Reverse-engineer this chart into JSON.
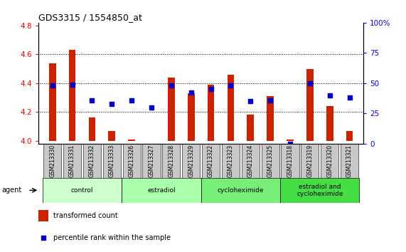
{
  "title": "GDS3315 / 1554850_at",
  "samples": [
    "GSM213330",
    "GSM213331",
    "GSM213332",
    "GSM213333",
    "GSM213326",
    "GSM213327",
    "GSM213328",
    "GSM213329",
    "GSM213322",
    "GSM213323",
    "GSM213324",
    "GSM213325",
    "GSM213318",
    "GSM213319",
    "GSM213320",
    "GSM213321"
  ],
  "transformed_counts": [
    4.54,
    4.63,
    4.16,
    4.07,
    4.01,
    4.0,
    4.44,
    4.33,
    4.39,
    4.46,
    4.18,
    4.31,
    4.01,
    4.5,
    4.24,
    4.07
  ],
  "percentile_ranks": [
    48,
    49,
    36,
    33,
    36,
    30,
    48,
    42,
    45,
    48,
    35,
    36,
    0,
    50,
    40,
    38
  ],
  "group_boundaries": [
    {
      "start": 0,
      "end": 3,
      "label": "control",
      "color": "#ccffcc"
    },
    {
      "start": 4,
      "end": 7,
      "label": "estradiol",
      "color": "#aaffaa"
    },
    {
      "start": 8,
      "end": 11,
      "label": "cycloheximide",
      "color": "#77ee77"
    },
    {
      "start": 12,
      "end": 15,
      "label": "estradiol and\ncycloheximide",
      "color": "#44dd44"
    }
  ],
  "bar_color": "#cc2200",
  "dot_color": "#0000cc",
  "ylim_left": [
    3.98,
    4.82
  ],
  "ylim_right": [
    0,
    100
  ],
  "yticks_left": [
    4.0,
    4.2,
    4.4,
    4.6,
    4.8
  ],
  "yticks_right": [
    0,
    25,
    50,
    75,
    100
  ],
  "bar_width": 0.35,
  "base_value": 4.0,
  "background_color": "#ffffff",
  "tick_area_color": "#c8c8c8",
  "grid_ticks": [
    4.2,
    4.4,
    4.6
  ]
}
